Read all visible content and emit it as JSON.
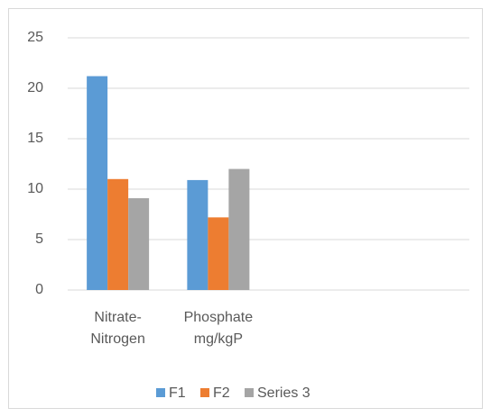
{
  "chart_data": {
    "type": "bar",
    "categories": [
      "Nitrate-\nNitrogen",
      "Phosphate\nmg/kgP",
      null,
      null
    ],
    "series": [
      {
        "name": "F1",
        "color": "#5b9bd5",
        "values": [
          21.2,
          10.9,
          null,
          null
        ]
      },
      {
        "name": "F2",
        "color": "#ed7d31",
        "values": [
          11,
          7.2,
          null,
          null
        ]
      },
      {
        "name": "Series 3",
        "color": "#a5a5a5",
        "values": [
          9.1,
          12,
          null,
          null
        ]
      }
    ],
    "ylim": [
      0,
      25
    ],
    "yticks": [
      0,
      5,
      10,
      15,
      20,
      25
    ],
    "grid": true,
    "legend": "bottom"
  }
}
